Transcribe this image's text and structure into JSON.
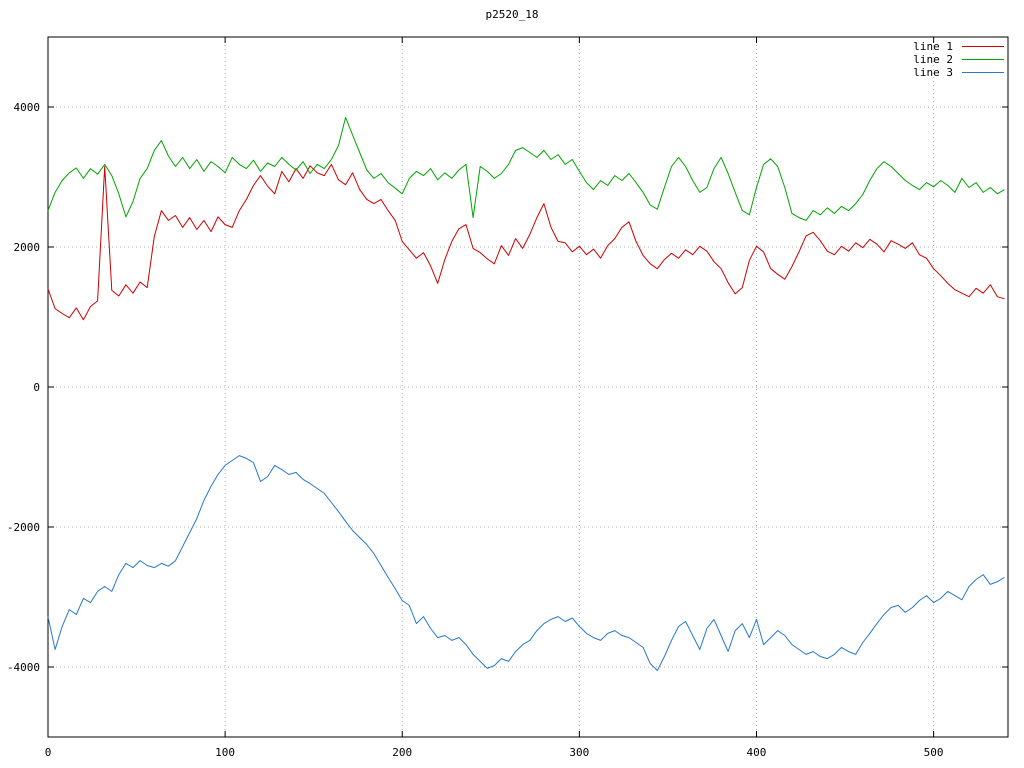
{
  "chart_data": {
    "type": "line",
    "title": "p2520_18",
    "xlabel": "",
    "ylabel": "",
    "xlim": [
      0,
      542
    ],
    "ylim": [
      -5000,
      5000
    ],
    "x_ticks": [
      0,
      100,
      200,
      300,
      400,
      500
    ],
    "y_ticks": [
      -4000,
      -2000,
      0,
      2000,
      4000
    ],
    "grid": true,
    "grid_style": "dotted",
    "grid_color": "#b0b0b0",
    "axes_color": "#000000",
    "legend_position": "top-right",
    "x_start": 0,
    "x_step": 4,
    "series": [
      {
        "name": "line 1",
        "color": "#cc0000",
        "values": [
          1400,
          1120,
          1050,
          990,
          1130,
          960,
          1150,
          1230,
          3150,
          1380,
          1300,
          1460,
          1340,
          1500,
          1420,
          2150,
          2520,
          2380,
          2450,
          2280,
          2420,
          2250,
          2380,
          2220,
          2430,
          2320,
          2280,
          2520,
          2680,
          2880,
          3020,
          2870,
          2760,
          3080,
          2930,
          3120,
          2980,
          3160,
          3060,
          3020,
          3180,
          2960,
          2890,
          3060,
          2820,
          2680,
          2620,
          2680,
          2520,
          2380,
          2080,
          1960,
          1840,
          1920,
          1730,
          1480,
          1820,
          2080,
          2260,
          2320,
          1980,
          1920,
          1830,
          1760,
          2020,
          1880,
          2120,
          1980,
          2180,
          2420,
          2620,
          2280,
          2080,
          2060,
          1930,
          2010,
          1890,
          1970,
          1840,
          2020,
          2120,
          2280,
          2360,
          2080,
          1880,
          1760,
          1690,
          1820,
          1910,
          1840,
          1960,
          1890,
          2010,
          1940,
          1790,
          1690,
          1490,
          1330,
          1420,
          1810,
          2010,
          1930,
          1690,
          1610,
          1540,
          1720,
          1930,
          2160,
          2210,
          2090,
          1940,
          1890,
          2010,
          1940,
          2060,
          1990,
          2110,
          2040,
          1930,
          2090,
          2040,
          1980,
          2060,
          1890,
          1840,
          1690,
          1590,
          1480,
          1390,
          1340,
          1290,
          1410,
          1340,
          1460,
          1290,
          1260
        ]
      },
      {
        "name": "line 2",
        "color": "#00a400",
        "values": [
          2520,
          2780,
          2950,
          3060,
          3130,
          2980,
          3120,
          3040,
          3180,
          3020,
          2760,
          2430,
          2650,
          2980,
          3120,
          3380,
          3520,
          3300,
          3150,
          3280,
          3120,
          3250,
          3080,
          3220,
          3150,
          3060,
          3280,
          3180,
          3120,
          3240,
          3080,
          3200,
          3150,
          3280,
          3180,
          3100,
          3220,
          3050,
          3180,
          3120,
          3250,
          3450,
          3850,
          3600,
          3350,
          3100,
          2980,
          3050,
          2920,
          2840,
          2760,
          2980,
          3080,
          3020,
          3120,
          2960,
          3060,
          2980,
          3100,
          3180,
          2420,
          3150,
          3080,
          2980,
          3050,
          3180,
          3380,
          3420,
          3350,
          3280,
          3380,
          3250,
          3320,
          3180,
          3250,
          3080,
          2920,
          2820,
          2950,
          2880,
          3020,
          2950,
          3050,
          2920,
          2780,
          2600,
          2540,
          2850,
          3150,
          3280,
          3150,
          2950,
          2780,
          2850,
          3120,
          3280,
          3050,
          2780,
          2520,
          2460,
          2850,
          3180,
          3260,
          3150,
          2850,
          2480,
          2420,
          2380,
          2520,
          2460,
          2560,
          2480,
          2580,
          2520,
          2620,
          2750,
          2950,
          3120,
          3220,
          3150,
          3050,
          2950,
          2880,
          2820,
          2920,
          2860,
          2950,
          2880,
          2780,
          2980,
          2850,
          2920,
          2780,
          2850,
          2760,
          2820
        ]
      },
      {
        "name": "line 3",
        "color": "#2878c8",
        "values": [
          -3280,
          -3750,
          -3420,
          -3180,
          -3250,
          -3020,
          -3080,
          -2920,
          -2850,
          -2920,
          -2680,
          -2520,
          -2580,
          -2480,
          -2550,
          -2580,
          -2520,
          -2560,
          -2480,
          -2280,
          -2080,
          -1880,
          -1620,
          -1420,
          -1250,
          -1120,
          -1050,
          -980,
          -1020,
          -1080,
          -1350,
          -1280,
          -1120,
          -1180,
          -1250,
          -1220,
          -1320,
          -1380,
          -1450,
          -1520,
          -1650,
          -1780,
          -1920,
          -2050,
          -2150,
          -2250,
          -2380,
          -2550,
          -2720,
          -2880,
          -3050,
          -3120,
          -3380,
          -3280,
          -3450,
          -3580,
          -3550,
          -3620,
          -3580,
          -3680,
          -3820,
          -3920,
          -4020,
          -3980,
          -3880,
          -3920,
          -3780,
          -3680,
          -3620,
          -3480,
          -3380,
          -3320,
          -3280,
          -3350,
          -3300,
          -3420,
          -3520,
          -3580,
          -3620,
          -3520,
          -3480,
          -3550,
          -3580,
          -3650,
          -3720,
          -3950,
          -4050,
          -3850,
          -3620,
          -3420,
          -3350,
          -3550,
          -3750,
          -3450,
          -3320,
          -3550,
          -3780,
          -3480,
          -3380,
          -3580,
          -3320,
          -3680,
          -3580,
          -3480,
          -3550,
          -3680,
          -3750,
          -3820,
          -3780,
          -3850,
          -3880,
          -3820,
          -3720,
          -3780,
          -3820,
          -3650,
          -3520,
          -3380,
          -3250,
          -3150,
          -3120,
          -3220,
          -3150,
          -3050,
          -2980,
          -3080,
          -3020,
          -2920,
          -2980,
          -3040,
          -2850,
          -2750,
          -2680,
          -2820,
          -2780,
          -2720
        ]
      }
    ]
  }
}
